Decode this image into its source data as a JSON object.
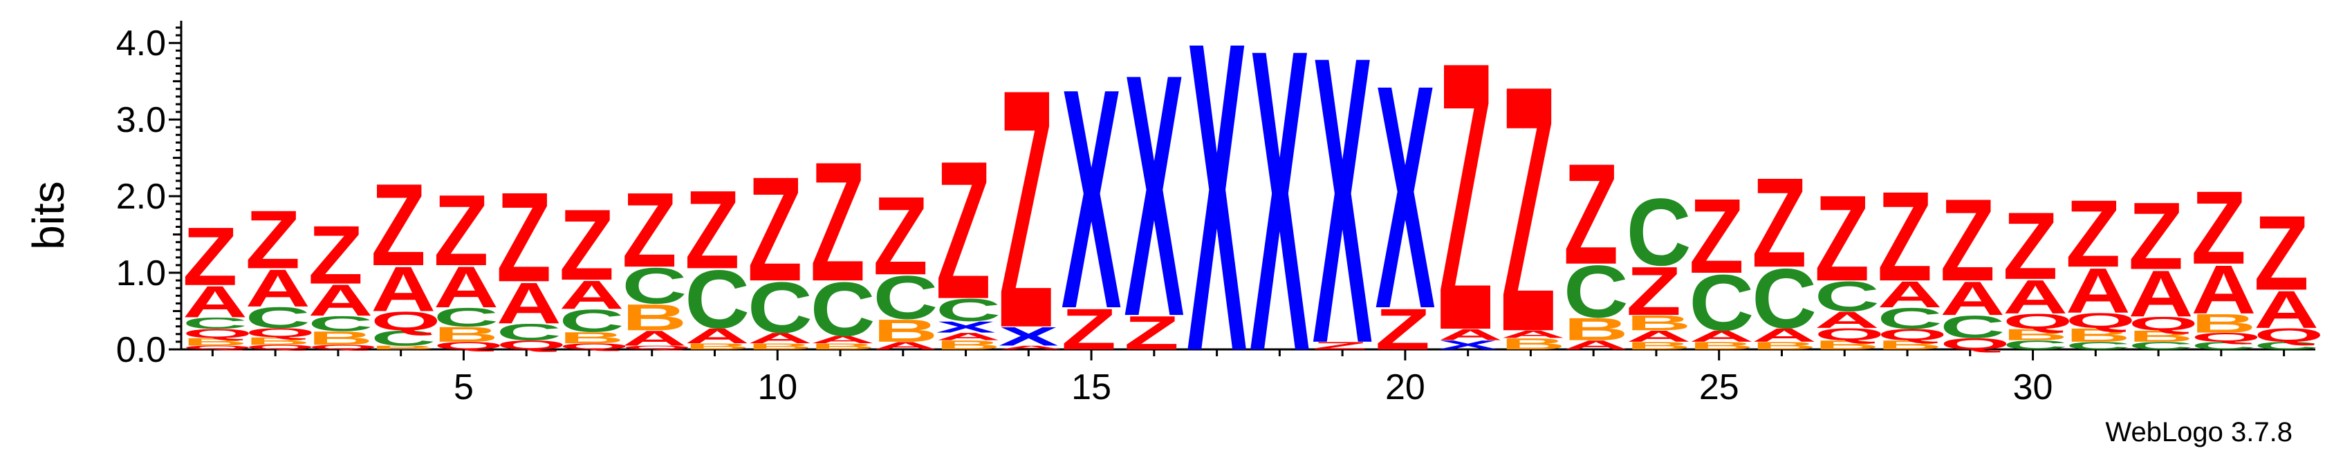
{
  "chart_data": {
    "type": "sequence-logo",
    "ylabel": "bits",
    "ylim": [
      0,
      4.2
    ],
    "yticks": [
      "0.0",
      "1.0",
      "2.0",
      "3.0",
      "4.0"
    ],
    "xticks": [
      "5",
      "10",
      "15",
      "20",
      "25",
      "30"
    ],
    "x_range": [
      1,
      34
    ],
    "colors": {
      "Z": "#ff0000",
      "A": "#ff0000",
      "X": "#0000ff",
      "C": "#228b22",
      "B": "#ff8c00",
      "Q": "#ff0000"
    },
    "positions": [
      {
        "pos": 1,
        "stack": [
          [
            "Q",
            0.05
          ],
          [
            "B",
            0.1
          ],
          [
            "Q",
            0.12
          ],
          [
            "C",
            0.15
          ],
          [
            "A",
            0.42
          ],
          [
            "Z",
            0.78
          ]
        ]
      },
      {
        "pos": 2,
        "stack": [
          [
            "Q",
            0.06
          ],
          [
            "B",
            0.1
          ],
          [
            "Q",
            0.12
          ],
          [
            "C",
            0.28
          ],
          [
            "A",
            0.5
          ],
          [
            "Z",
            0.78
          ]
        ]
      },
      {
        "pos": 3,
        "stack": [
          [
            "Q",
            0.06
          ],
          [
            "B",
            0.18
          ],
          [
            "C",
            0.2
          ],
          [
            "A",
            0.42
          ],
          [
            "Z",
            0.78
          ]
        ]
      },
      {
        "pos": 4,
        "stack": [
          [
            "B",
            0.05
          ],
          [
            "C",
            0.2
          ],
          [
            "Q",
            0.25
          ],
          [
            "A",
            0.6
          ],
          [
            "Z",
            1.1
          ]
        ]
      },
      {
        "pos": 5,
        "stack": [
          [
            "Q",
            0.1
          ],
          [
            "B",
            0.2
          ],
          [
            "C",
            0.25
          ],
          [
            "A",
            0.55
          ],
          [
            "Z",
            0.95
          ]
        ]
      },
      {
        "pos": 6,
        "stack": [
          [
            "Q",
            0.12
          ],
          [
            "C",
            0.22
          ],
          [
            "A",
            0.55
          ],
          [
            "Z",
            1.2
          ]
        ]
      },
      {
        "pos": 7,
        "stack": [
          [
            "Q",
            0.08
          ],
          [
            "B",
            0.15
          ],
          [
            "C",
            0.3
          ],
          [
            "A",
            0.38
          ],
          [
            "Z",
            0.95
          ]
        ]
      },
      {
        "pos": 8,
        "stack": [
          [
            "Q",
            0.05
          ],
          [
            "A",
            0.2
          ],
          [
            "B",
            0.35
          ],
          [
            "C",
            0.48
          ],
          [
            "Z",
            1.0
          ]
        ]
      },
      {
        "pos": 9,
        "stack": [
          [
            "B",
            0.08
          ],
          [
            "A",
            0.2
          ],
          [
            "C",
            0.78
          ],
          [
            "Z",
            1.05
          ]
        ]
      },
      {
        "pos": 10,
        "stack": [
          [
            "B",
            0.08
          ],
          [
            "A",
            0.14
          ],
          [
            "C",
            0.68
          ],
          [
            "Z",
            1.4
          ]
        ]
      },
      {
        "pos": 11,
        "stack": [
          [
            "B",
            0.08
          ],
          [
            "A",
            0.1
          ],
          [
            "C",
            0.72
          ],
          [
            "Z",
            1.6
          ]
        ]
      },
      {
        "pos": 12,
        "stack": [
          [
            "A",
            0.1
          ],
          [
            "B",
            0.3
          ],
          [
            "C",
            0.58
          ],
          [
            "Z",
            1.05
          ]
        ]
      },
      {
        "pos": 13,
        "stack": [
          [
            "B",
            0.12
          ],
          [
            "A",
            0.1
          ],
          [
            "X",
            0.15
          ],
          [
            "C",
            0.3
          ],
          [
            "Z",
            1.85
          ]
        ]
      },
      {
        "pos": 14,
        "stack": [
          [
            "A",
            0.05
          ],
          [
            "X",
            0.25
          ],
          [
            "Z",
            3.2
          ]
        ]
      },
      {
        "pos": 15,
        "stack": [
          [
            "Z",
            0.55
          ],
          [
            "X",
            2.95
          ]
        ]
      },
      {
        "pos": 16,
        "stack": [
          [
            "Z",
            0.45
          ],
          [
            "X",
            3.25
          ]
        ]
      },
      {
        "pos": 17,
        "stack": [
          [
            "X",
            4.15
          ]
        ]
      },
      {
        "pos": 18,
        "stack": [
          [
            "X",
            4.05
          ]
        ]
      },
      {
        "pos": 19,
        "stack": [
          [
            "Z",
            0.1
          ],
          [
            "X",
            3.85
          ]
        ]
      },
      {
        "pos": 20,
        "stack": [
          [
            "Z",
            0.55
          ],
          [
            "X",
            3.0
          ]
        ]
      },
      {
        "pos": 21,
        "stack": [
          [
            "X",
            0.12
          ],
          [
            "A",
            0.15
          ],
          [
            "Z",
            3.6
          ]
        ]
      },
      {
        "pos": 22,
        "stack": [
          [
            "B",
            0.15
          ],
          [
            "A",
            0.1
          ],
          [
            "Z",
            3.3
          ]
        ]
      },
      {
        "pos": 23,
        "stack": [
          [
            "A",
            0.12
          ],
          [
            "B",
            0.3
          ],
          [
            "C",
            0.7
          ],
          [
            "Z",
            1.35
          ]
        ]
      },
      {
        "pos": 24,
        "stack": [
          [
            "B",
            0.1
          ],
          [
            "A",
            0.15
          ],
          [
            "B",
            0.2
          ],
          [
            "Z",
            0.65
          ],
          [
            "C",
            0.9
          ]
        ]
      },
      {
        "pos": 25,
        "stack": [
          [
            "B",
            0.1
          ],
          [
            "A",
            0.15
          ],
          [
            "C",
            0.75
          ],
          [
            "Z",
            1.0
          ]
        ]
      },
      {
        "pos": 26,
        "stack": [
          [
            "B",
            0.1
          ],
          [
            "A",
            0.18
          ],
          [
            "C",
            0.8
          ],
          [
            "Z",
            1.2
          ]
        ]
      },
      {
        "pos": 27,
        "stack": [
          [
            "B",
            0.12
          ],
          [
            "Q",
            0.16
          ],
          [
            "A",
            0.22
          ],
          [
            "C",
            0.4
          ],
          [
            "Z",
            1.15
          ]
        ]
      },
      {
        "pos": 28,
        "stack": [
          [
            "B",
            0.12
          ],
          [
            "Q",
            0.15
          ],
          [
            "C",
            0.28
          ],
          [
            "A",
            0.35
          ],
          [
            "Z",
            1.2
          ]
        ]
      },
      {
        "pos": 29,
        "stack": [
          [
            "Q",
            0.15
          ],
          [
            "C",
            0.3
          ],
          [
            "A",
            0.45
          ],
          [
            "Z",
            1.1
          ]
        ]
      },
      {
        "pos": 30,
        "stack": [
          [
            "C",
            0.12
          ],
          [
            "B",
            0.15
          ],
          [
            "Q",
            0.2
          ],
          [
            "A",
            0.45
          ],
          [
            "Z",
            0.9
          ]
        ]
      },
      {
        "pos": 31,
        "stack": [
          [
            "C",
            0.1
          ],
          [
            "B",
            0.18
          ],
          [
            "Q",
            0.2
          ],
          [
            "A",
            0.6
          ],
          [
            "Z",
            0.9
          ]
        ]
      },
      {
        "pos": 32,
        "stack": [
          [
            "C",
            0.1
          ],
          [
            "B",
            0.15
          ],
          [
            "Q",
            0.18
          ],
          [
            "A",
            0.62
          ],
          [
            "Z",
            0.9
          ]
        ]
      },
      {
        "pos": 33,
        "stack": [
          [
            "C",
            0.1
          ],
          [
            "Q",
            0.12
          ],
          [
            "B",
            0.25
          ],
          [
            "A",
            0.65
          ],
          [
            "Z",
            0.98
          ]
        ]
      },
      {
        "pos": 34,
        "stack": [
          [
            "C",
            0.1
          ],
          [
            "Q",
            0.18
          ],
          [
            "A",
            0.5
          ],
          [
            "Z",
            1.0
          ]
        ]
      }
    ]
  },
  "footer": {
    "credit": "WebLogo 3.7.8"
  }
}
